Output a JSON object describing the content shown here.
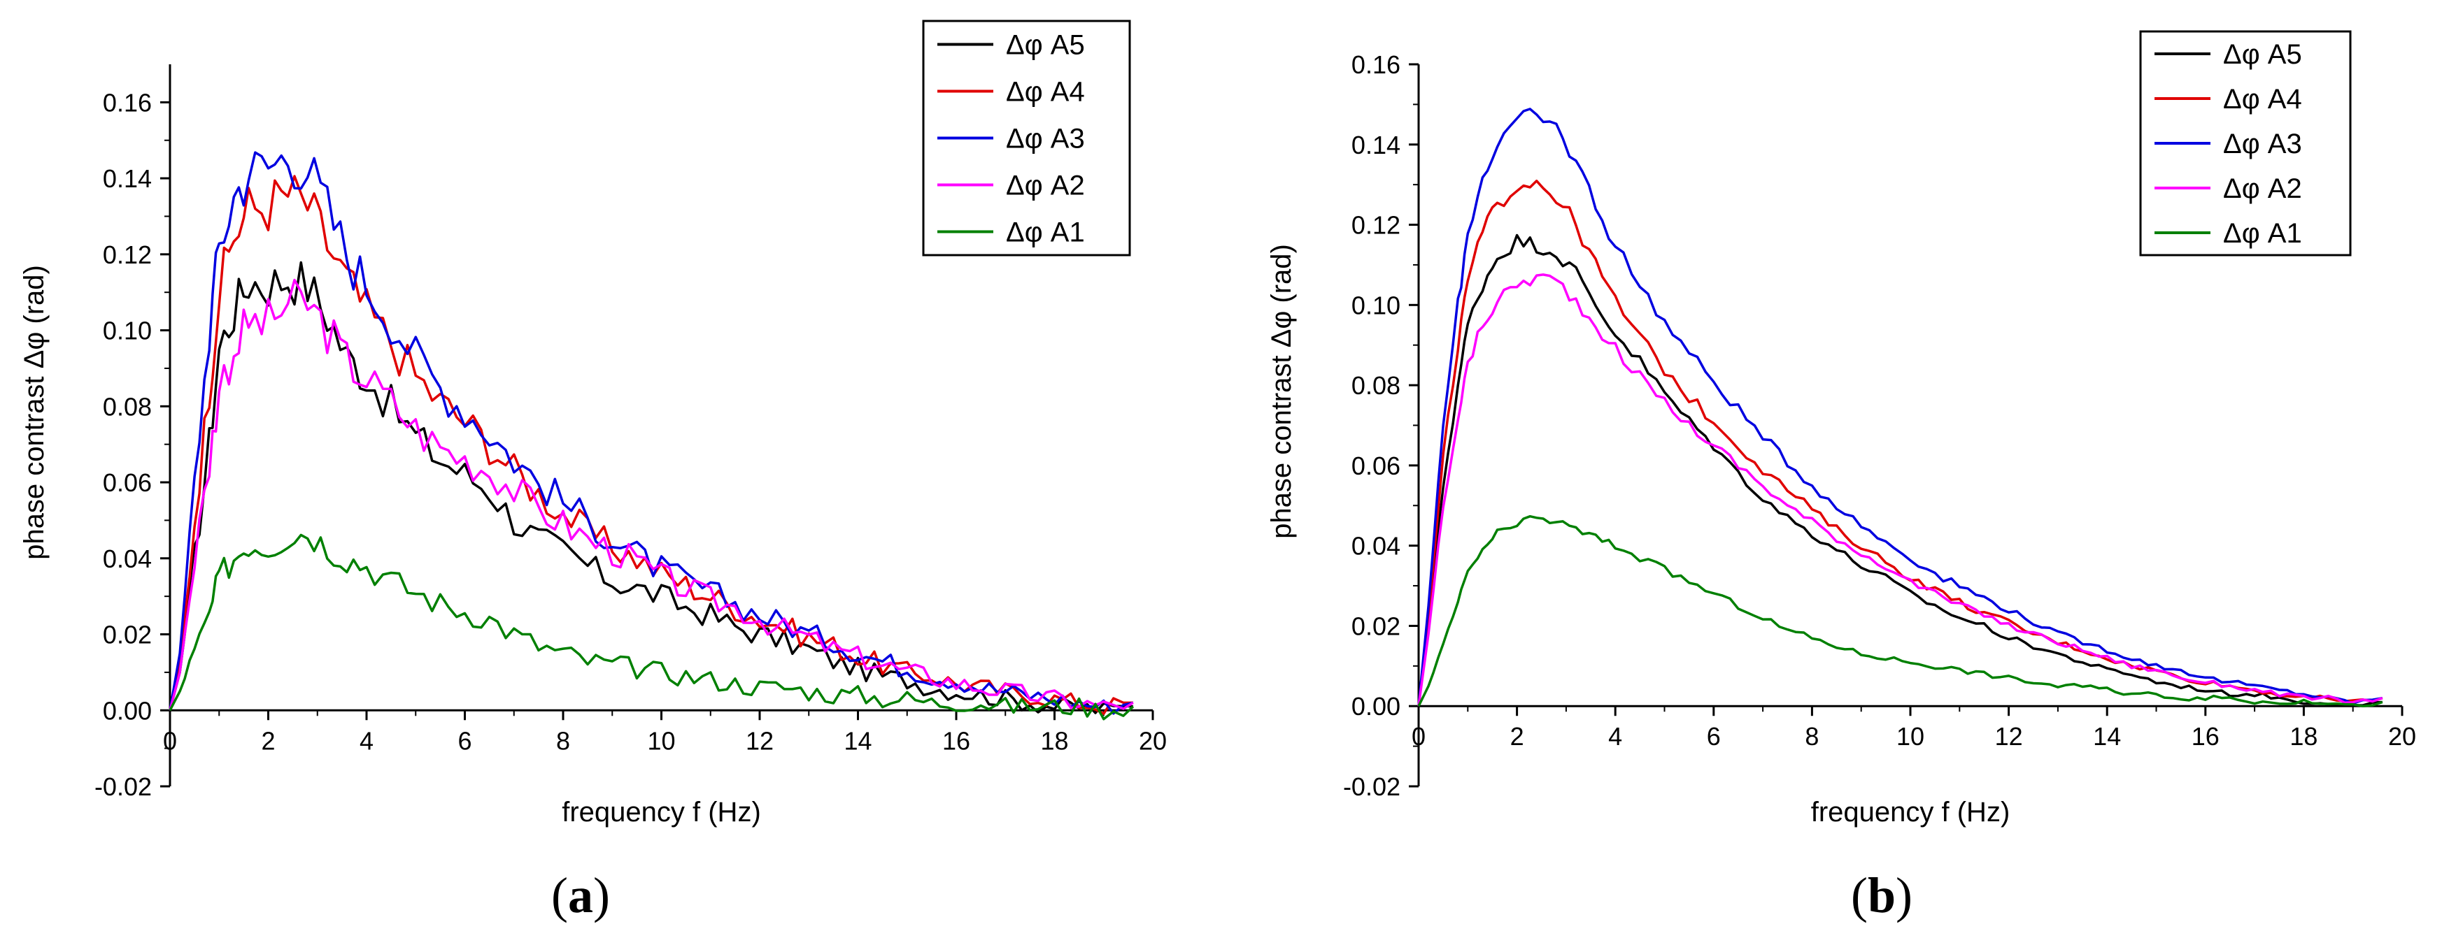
{
  "chart_data": [
    {
      "type": "line",
      "panel_label": "a",
      "xlabel": "frequency f (Hz)",
      "ylabel": "phase contrast Δφ (rad)",
      "xlim": [
        0,
        20
      ],
      "ylim": [
        -0.02,
        0.17
      ],
      "x_ticks": [
        0,
        2,
        4,
        6,
        8,
        10,
        12,
        14,
        16,
        18,
        20
      ],
      "x_tick_labels": [
        "0",
        "2",
        "4",
        "6",
        "8",
        "10",
        "12",
        "14",
        "16",
        "18",
        "20"
      ],
      "y_ticks": [
        -0.02,
        0.0,
        0.02,
        0.04,
        0.06,
        0.08,
        0.1,
        0.12,
        0.14,
        0.16
      ],
      "y_tick_labels": [
        "-0.02",
        "0.00",
        "0.02",
        "0.04",
        "0.06",
        "0.08",
        "0.10",
        "0.12",
        "0.14",
        "0.16"
      ],
      "legend_position": "top-right",
      "noise": true,
      "series": [
        {
          "name": "Δφ A5",
          "color": "#000000",
          "x": [
            0,
            0.2,
            0.5,
            0.8,
            1.0,
            1.3,
            1.6,
            2.0,
            2.4,
            2.8,
            3.2,
            3.6,
            4.0,
            4.5,
            5.0,
            5.5,
            6.0,
            6.5,
            7.0,
            7.5,
            8.0,
            8.5,
            9.0,
            9.5,
            10.0,
            10.5,
            11.0,
            11.5,
            12.0,
            12.5,
            13.0,
            13.5,
            14.0,
            14.5,
            15.0,
            15.5,
            16.0,
            16.5,
            17.0,
            17.5,
            18.0,
            18.5,
            19.0,
            19.6
          ],
          "values": [
            0.0,
            0.01,
            0.04,
            0.07,
            0.095,
            0.105,
            0.113,
            0.112,
            0.114,
            0.112,
            0.104,
            0.093,
            0.088,
            0.08,
            0.072,
            0.066,
            0.062,
            0.058,
            0.05,
            0.045,
            0.042,
            0.038,
            0.034,
            0.032,
            0.03,
            0.027,
            0.025,
            0.022,
            0.02,
            0.018,
            0.016,
            0.013,
            0.011,
            0.009,
            0.008,
            0.006,
            0.005,
            0.004,
            0.003,
            0.002,
            0.001,
            0.001,
            0.0,
            0.001
          ]
        },
        {
          "name": "Δφ A4",
          "color": "#e00000",
          "x": [
            0,
            0.2,
            0.5,
            0.8,
            1.0,
            1.3,
            1.6,
            2.0,
            2.4,
            2.8,
            3.2,
            3.6,
            4.0,
            4.5,
            5.0,
            5.5,
            6.0,
            6.5,
            7.0,
            7.5,
            8.0,
            8.5,
            9.0,
            9.5,
            10.0,
            10.5,
            11.0,
            11.5,
            12.0,
            12.5,
            13.0,
            13.5,
            14.0,
            14.5,
            15.0,
            15.5,
            16.0,
            16.5,
            17.0,
            17.5,
            18.0,
            18.5,
            19.0,
            19.6
          ],
          "values": [
            0.0,
            0.012,
            0.05,
            0.085,
            0.11,
            0.125,
            0.132,
            0.133,
            0.136,
            0.133,
            0.123,
            0.113,
            0.105,
            0.097,
            0.088,
            0.081,
            0.076,
            0.07,
            0.063,
            0.057,
            0.052,
            0.047,
            0.043,
            0.04,
            0.036,
            0.033,
            0.03,
            0.027,
            0.024,
            0.022,
            0.019,
            0.017,
            0.014,
            0.012,
            0.01,
            0.009,
            0.007,
            0.006,
            0.005,
            0.004,
            0.003,
            0.002,
            0.001,
            0.002
          ]
        },
        {
          "name": "Δφ A3",
          "color": "#0000e0",
          "x": [
            0,
            0.2,
            0.5,
            0.8,
            1.0,
            1.3,
            1.6,
            2.0,
            2.4,
            2.8,
            3.2,
            3.6,
            4.0,
            4.5,
            5.0,
            5.5,
            6.0,
            6.5,
            7.0,
            7.5,
            8.0,
            8.5,
            9.0,
            9.5,
            10.0,
            10.5,
            11.0,
            11.5,
            12.0,
            12.5,
            13.0,
            13.5,
            14.0,
            14.5,
            15.0,
            15.5,
            16.0,
            16.5,
            17.0,
            17.5,
            18.0,
            18.5,
            19.0,
            19.6
          ],
          "values": [
            0.0,
            0.015,
            0.06,
            0.1,
            0.122,
            0.135,
            0.142,
            0.143,
            0.146,
            0.143,
            0.132,
            0.12,
            0.112,
            0.103,
            0.093,
            0.085,
            0.079,
            0.073,
            0.066,
            0.06,
            0.055,
            0.05,
            0.045,
            0.041,
            0.037,
            0.034,
            0.031,
            0.028,
            0.025,
            0.023,
            0.02,
            0.018,
            0.015,
            0.013,
            0.011,
            0.009,
            0.008,
            0.006,
            0.005,
            0.004,
            0.003,
            0.002,
            0.001,
            0.002
          ]
        },
        {
          "name": "Δφ A2",
          "color": "#ff00ff",
          "x": [
            0,
            0.2,
            0.5,
            0.8,
            1.0,
            1.3,
            1.6,
            2.0,
            2.4,
            2.8,
            3.2,
            3.6,
            4.0,
            4.5,
            5.0,
            5.5,
            6.0,
            6.5,
            7.0,
            7.5,
            8.0,
            8.5,
            9.0,
            9.5,
            10.0,
            10.5,
            11.0,
            11.5,
            12.0,
            12.5,
            13.0,
            13.5,
            14.0,
            14.5,
            15.0,
            15.5,
            16.0,
            16.5,
            17.0,
            17.5,
            18.0,
            18.5,
            19.0,
            19.6
          ],
          "values": [
            0.0,
            0.01,
            0.04,
            0.065,
            0.085,
            0.095,
            0.102,
            0.102,
            0.107,
            0.107,
            0.1,
            0.092,
            0.087,
            0.081,
            0.074,
            0.069,
            0.066,
            0.063,
            0.058,
            0.053,
            0.049,
            0.045,
            0.042,
            0.039,
            0.035,
            0.032,
            0.029,
            0.027,
            0.024,
            0.021,
            0.019,
            0.016,
            0.014,
            0.012,
            0.01,
            0.009,
            0.007,
            0.006,
            0.005,
            0.004,
            0.003,
            0.002,
            0.001,
            0.002
          ]
        },
        {
          "name": "Δφ A1",
          "color": "#008000",
          "x": [
            0,
            0.2,
            0.5,
            0.8,
            1.0,
            1.3,
            1.6,
            2.0,
            2.4,
            2.8,
            3.2,
            3.6,
            4.0,
            4.5,
            5.0,
            5.5,
            6.0,
            6.5,
            7.0,
            7.5,
            8.0,
            8.5,
            9.0,
            9.5,
            10.0,
            10.5,
            11.0,
            11.5,
            12.0,
            12.5,
            13.0,
            13.5,
            14.0,
            14.5,
            15.0,
            15.5,
            16.0,
            16.5,
            17.0,
            17.5,
            18.0,
            18.5,
            19.0,
            19.6
          ],
          "values": [
            0.0,
            0.005,
            0.015,
            0.025,
            0.035,
            0.04,
            0.044,
            0.043,
            0.046,
            0.047,
            0.043,
            0.04,
            0.038,
            0.034,
            0.031,
            0.028,
            0.026,
            0.024,
            0.02,
            0.017,
            0.015,
            0.013,
            0.012,
            0.011,
            0.01,
            0.009,
            0.008,
            0.007,
            0.006,
            0.006,
            0.005,
            0.004,
            0.004,
            0.003,
            0.003,
            0.002,
            0.002,
            0.002,
            0.001,
            0.001,
            0.001,
            0.001,
            0.0,
            0.001
          ]
        }
      ]
    },
    {
      "type": "line",
      "panel_label": "b",
      "xlabel": "frequency f (Hz)",
      "ylabel": "phase contrast Δφ (rad)",
      "xlim": [
        0,
        20
      ],
      "ylim": [
        -0.02,
        0.16
      ],
      "x_ticks": [
        0,
        2,
        4,
        6,
        8,
        10,
        12,
        14,
        16,
        18,
        20
      ],
      "x_tick_labels": [
        "0",
        "2",
        "4",
        "6",
        "8",
        "10",
        "12",
        "14",
        "16",
        "18",
        "20"
      ],
      "y_ticks": [
        -0.02,
        0.0,
        0.02,
        0.04,
        0.06,
        0.08,
        0.1,
        0.12,
        0.14,
        0.16
      ],
      "y_tick_labels": [
        "-0.02",
        "0.00",
        "0.02",
        "0.04",
        "0.06",
        "0.08",
        "0.10",
        "0.12",
        "0.14",
        "0.16"
      ],
      "legend_position": "top-right",
      "noise": false,
      "series": [
        {
          "name": "Δφ A5",
          "color": "#000000",
          "x": [
            0,
            0.2,
            0.5,
            0.8,
            1.0,
            1.3,
            1.6,
            2.0,
            2.4,
            2.8,
            3.2,
            3.6,
            4.0,
            4.5,
            5.0,
            5.5,
            6.0,
            6.5,
            7.0,
            7.5,
            8.0,
            8.5,
            9.0,
            9.5,
            10.0,
            10.5,
            11.0,
            11.5,
            12.0,
            12.5,
            13.0,
            13.5,
            14.0,
            14.5,
            15.0,
            15.5,
            16.0,
            16.5,
            17.0,
            17.5,
            18.0,
            18.5,
            19.0,
            19.6
          ],
          "values": [
            0.0,
            0.02,
            0.055,
            0.08,
            0.095,
            0.105,
            0.112,
            0.116,
            0.115,
            0.113,
            0.108,
            0.1,
            0.093,
            0.086,
            0.078,
            0.071,
            0.065,
            0.058,
            0.052,
            0.047,
            0.043,
            0.039,
            0.035,
            0.032,
            0.028,
            0.025,
            0.022,
            0.02,
            0.017,
            0.015,
            0.013,
            0.011,
            0.009,
            0.008,
            0.006,
            0.005,
            0.004,
            0.003,
            0.003,
            0.002,
            0.001,
            0.001,
            0.0,
            0.001
          ]
        },
        {
          "name": "Δφ A4",
          "color": "#e00000",
          "x": [
            0,
            0.2,
            0.5,
            0.8,
            1.0,
            1.3,
            1.6,
            2.0,
            2.4,
            2.8,
            3.2,
            3.6,
            4.0,
            4.5,
            5.0,
            5.5,
            6.0,
            6.5,
            7.0,
            7.5,
            8.0,
            8.5,
            9.0,
            9.5,
            10.0,
            10.5,
            11.0,
            11.5,
            12.0,
            12.5,
            13.0,
            13.5,
            14.0,
            14.5,
            15.0,
            15.5,
            16.0,
            16.5,
            17.0,
            17.5,
            18.0,
            18.5,
            19.0,
            19.6
          ],
          "values": [
            0.0,
            0.022,
            0.062,
            0.09,
            0.106,
            0.118,
            0.125,
            0.13,
            0.131,
            0.127,
            0.12,
            0.11,
            0.101,
            0.092,
            0.084,
            0.077,
            0.071,
            0.065,
            0.059,
            0.054,
            0.049,
            0.044,
            0.04,
            0.036,
            0.032,
            0.029,
            0.026,
            0.023,
            0.021,
            0.018,
            0.016,
            0.014,
            0.012,
            0.01,
            0.009,
            0.007,
            0.006,
            0.005,
            0.004,
            0.003,
            0.002,
            0.002,
            0.001,
            0.002
          ]
        },
        {
          "name": "Δφ A3",
          "color": "#0000e0",
          "x": [
            0,
            0.2,
            0.5,
            0.8,
            1.0,
            1.3,
            1.6,
            2.0,
            2.4,
            2.8,
            3.2,
            3.6,
            4.0,
            4.5,
            5.0,
            5.5,
            6.0,
            6.5,
            7.0,
            7.5,
            8.0,
            8.5,
            9.0,
            9.5,
            10.0,
            10.5,
            11.0,
            11.5,
            12.0,
            12.5,
            13.0,
            13.5,
            14.0,
            14.5,
            15.0,
            15.5,
            16.0,
            16.5,
            17.0,
            17.5,
            18.0,
            18.5,
            19.0,
            19.6
          ],
          "values": [
            0.0,
            0.025,
            0.07,
            0.1,
            0.118,
            0.132,
            0.14,
            0.146,
            0.147,
            0.144,
            0.136,
            0.125,
            0.115,
            0.105,
            0.096,
            0.088,
            0.081,
            0.074,
            0.067,
            0.061,
            0.055,
            0.05,
            0.045,
            0.041,
            0.037,
            0.033,
            0.03,
            0.027,
            0.024,
            0.021,
            0.018,
            0.016,
            0.014,
            0.012,
            0.01,
            0.009,
            0.007,
            0.006,
            0.005,
            0.004,
            0.003,
            0.002,
            0.001,
            0.002
          ]
        },
        {
          "name": "Δφ A2",
          "color": "#ff00ff",
          "x": [
            0,
            0.2,
            0.5,
            0.8,
            1.0,
            1.3,
            1.6,
            2.0,
            2.4,
            2.8,
            3.2,
            3.6,
            4.0,
            4.5,
            5.0,
            5.5,
            6.0,
            6.5,
            7.0,
            7.5,
            8.0,
            8.5,
            9.0,
            9.5,
            10.0,
            10.5,
            11.0,
            11.5,
            12.0,
            12.5,
            13.0,
            13.5,
            14.0,
            14.5,
            15.0,
            15.5,
            16.0,
            16.5,
            17.0,
            17.5,
            18.0,
            18.5,
            19.0,
            19.6
          ],
          "values": [
            0.0,
            0.018,
            0.05,
            0.072,
            0.085,
            0.095,
            0.101,
            0.105,
            0.107,
            0.106,
            0.101,
            0.095,
            0.089,
            0.082,
            0.076,
            0.07,
            0.065,
            0.06,
            0.055,
            0.05,
            0.046,
            0.042,
            0.038,
            0.035,
            0.031,
            0.028,
            0.025,
            0.023,
            0.02,
            0.018,
            0.016,
            0.014,
            0.012,
            0.01,
            0.009,
            0.007,
            0.006,
            0.005,
            0.004,
            0.003,
            0.002,
            0.002,
            0.001,
            0.002
          ]
        },
        {
          "name": "Δφ A1",
          "color": "#008000",
          "x": [
            0,
            0.2,
            0.5,
            0.8,
            1.0,
            1.3,
            1.6,
            2.0,
            2.4,
            2.8,
            3.2,
            3.6,
            4.0,
            4.5,
            5.0,
            5.5,
            6.0,
            6.5,
            7.0,
            7.5,
            8.0,
            8.5,
            9.0,
            9.5,
            10.0,
            10.5,
            11.0,
            11.5,
            12.0,
            12.5,
            13.0,
            13.5,
            14.0,
            14.5,
            15.0,
            15.5,
            16.0,
            16.5,
            17.0,
            17.5,
            18.0,
            18.5,
            19.0,
            19.6
          ],
          "values": [
            0.0,
            0.005,
            0.015,
            0.026,
            0.033,
            0.039,
            0.043,
            0.045,
            0.047,
            0.046,
            0.044,
            0.042,
            0.04,
            0.037,
            0.034,
            0.031,
            0.028,
            0.025,
            0.022,
            0.019,
            0.017,
            0.015,
            0.013,
            0.012,
            0.011,
            0.01,
            0.009,
            0.008,
            0.007,
            0.006,
            0.005,
            0.005,
            0.004,
            0.003,
            0.003,
            0.002,
            0.002,
            0.002,
            0.001,
            0.001,
            0.001,
            0.001,
            0.0,
            0.001
          ]
        }
      ]
    }
  ]
}
